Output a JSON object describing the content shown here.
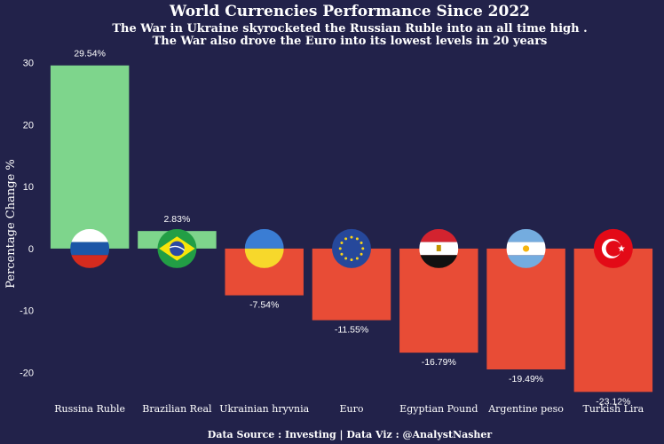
{
  "chart_data": {
    "type": "bar",
    "title": "World Currencies Performance Since 2022",
    "subtitle_lines": [
      "The War in Ukraine skyrocketed the Russian Ruble into an all time high .",
      "The War also drove the Euro into its lowest levels in 20 years"
    ],
    "xlabel": "",
    "ylabel": "Percentage Change %",
    "ylim": [
      -23.5,
      31.5
    ],
    "yticks": [
      -20,
      -10,
      0,
      10,
      20,
      30
    ],
    "grid": false,
    "categories": [
      "Russina Ruble",
      "Brazilian Real",
      "Ukrainian hryvnia",
      "Euro",
      "Egyptian Pound",
      "Argentine peso",
      "Turkish Lira"
    ],
    "values": [
      29.54,
      2.83,
      -7.54,
      -11.55,
      -16.79,
      -19.49,
      -23.12
    ],
    "data_labels": [
      "29.54%",
      "2.83%",
      "-7.54%",
      "-11.55%",
      "-16.79%",
      "-19.49%",
      "-23.12%"
    ],
    "flags": [
      "russia-flag",
      "brazil-flag",
      "ukraine-flag",
      "eu-flag",
      "egypt-flag",
      "argentina-flag",
      "turkey-flag"
    ],
    "colors": {
      "positive": "#7ed58c",
      "negative": "#e84c36",
      "background": "#22224a"
    },
    "source": "Data Source : Investing | Data Viz : @AnalystNasher"
  }
}
